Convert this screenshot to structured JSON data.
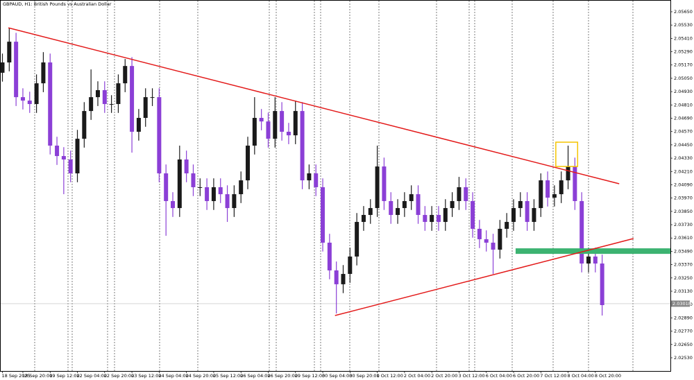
{
  "chart_data": {
    "type": "candlestick",
    "title": "GBPAUD, H1: British Pounds vs Australian Dollar",
    "categories": [
      "18 Sep 2025",
      null,
      null,
      "18 Sep 20:00",
      null,
      null,
      null,
      "19 Sep 12:00",
      null,
      null,
      null,
      "22 Sep 04:00",
      null,
      null,
      null,
      "22 Sep 20:00",
      null,
      null,
      null,
      "23 Sep 12:00",
      null,
      null,
      null,
      "24 Sep 04:00",
      null,
      null,
      null,
      "24 Sep 20:00",
      null,
      null,
      null,
      "25 Sep 12:00",
      null,
      null,
      null,
      "26 Sep 04:00",
      null,
      null,
      null,
      "26 Sep 20:00",
      null,
      null,
      null,
      "29 Sep 12:00",
      null,
      null,
      null,
      "30 Sep 04:00",
      null,
      null,
      null,
      "30 Sep 20:00",
      null,
      null,
      null,
      "1 Oct 12:00",
      null,
      null,
      null,
      "2 Oct 04:00",
      null,
      null,
      null,
      "2 Oct 20:00",
      null,
      null,
      null,
      "3 Oct 12:00",
      null,
      null,
      null,
      "6 Oct 04:00",
      null,
      null,
      null,
      "6 Oct 20:00",
      null,
      null,
      null,
      "7 Oct 12:00",
      null,
      null,
      null,
      "8 Oct 04:00",
      null,
      null,
      null,
      "8 Oct 20:00",
      null
    ],
    "open": [
      2.051,
      2.05193,
      2.0538,
      2.0488,
      2.04849,
      2.04818,
      2.05005,
      2.05193,
      2.04443,
      2.04349,
      2.04318,
      2.04193,
      2.04505,
      2.04755,
      2.0488,
      2.04943,
      2.04818,
      2.04818,
      2.05005,
      2.05161,
      2.04568,
      2.04693,
      2.0488,
      2.0488,
      2.04193,
      2.03943,
      2.0388,
      2.04318,
      2.04193,
      2.04068,
      2.04068,
      2.03943,
      2.04068,
      2.04005,
      2.0388,
      2.04005,
      2.0413,
      2.04443,
      2.04693,
      2.04661,
      2.04505,
      2.04755,
      2.04568,
      2.04536,
      2.04755,
      2.0413,
      2.04193,
      2.04068,
      2.03568,
      2.03318,
      2.03193,
      2.03286,
      2.03443,
      2.03755,
      2.03818,
      2.0388,
      2.04255,
      2.03943,
      2.03818,
      2.0388,
      2.03943,
      2.04005,
      2.03818,
      2.03755,
      2.03818,
      2.03755,
      2.0388,
      2.03943,
      2.04068,
      2.03943,
      2.03693,
      2.03599,
      2.03568,
      2.03505,
      2.03693,
      2.03755,
      2.0388,
      2.03943,
      2.03755,
      2.0388,
      2.0413,
      2.03974,
      2.04005,
      2.0413,
      2.04255,
      2.03943,
      2.0338,
      2.03443,
      2.0338
    ],
    "high": [
      2.05273,
      2.05505,
      2.0546,
      2.0496,
      2.04929,
      2.05085,
      2.05286,
      2.05273,
      2.04523,
      2.04429,
      2.04398,
      2.04585,
      2.04835,
      2.0513,
      2.05023,
      2.05023,
      2.04898,
      2.05085,
      2.05224,
      2.05241,
      2.04773,
      2.0496,
      2.0496,
      2.0496,
      2.04273,
      2.04023,
      2.04443,
      2.04398,
      2.04273,
      2.04148,
      2.04148,
      2.04148,
      2.04148,
      2.04085,
      2.04085,
      2.0421,
      2.04523,
      2.0488,
      2.04773,
      2.04741,
      2.0488,
      2.04835,
      2.04648,
      2.04849,
      2.04835,
      2.04273,
      2.04273,
      2.04148,
      2.03648,
      2.03398,
      2.03366,
      2.03523,
      2.03835,
      2.03898,
      2.0396,
      2.04443,
      2.04335,
      2.04023,
      2.0396,
      2.04023,
      2.04085,
      2.04085,
      2.03898,
      2.03898,
      2.03898,
      2.0396,
      2.04023,
      2.04161,
      2.04148,
      2.04023,
      2.03773,
      2.03679,
      2.03648,
      2.03773,
      2.03835,
      2.0396,
      2.04023,
      2.04023,
      2.0396,
      2.04193,
      2.0421,
      2.04085,
      2.0421,
      2.04443,
      2.04335,
      2.04023,
      2.03523,
      2.03523,
      2.0346
    ],
    "low": [
      2.0502,
      2.05113,
      2.048,
      2.04769,
      2.04738,
      2.04738,
      2.04925,
      2.04363,
      2.04269,
      2.04005,
      2.04113,
      2.04113,
      2.04425,
      2.04675,
      2.048,
      2.04738,
      2.04738,
      2.04738,
      2.04925,
      2.0438,
      2.04488,
      2.04613,
      2.048,
      2.04113,
      2.0363,
      2.038,
      2.038,
      2.04113,
      2.03988,
      2.03988,
      2.03863,
      2.03863,
      2.03925,
      2.03755,
      2.038,
      2.03925,
      2.0405,
      2.04363,
      2.04581,
      2.04425,
      2.04425,
      2.04488,
      2.04456,
      2.04456,
      2.0405,
      2.0405,
      2.03988,
      2.03488,
      2.03238,
      2.0293,
      2.03113,
      2.03206,
      2.03363,
      2.03675,
      2.03738,
      2.038,
      2.03863,
      2.03738,
      2.03738,
      2.038,
      2.03863,
      2.03738,
      2.03675,
      2.03675,
      2.03675,
      2.03675,
      2.038,
      2.03863,
      2.03863,
      2.03613,
      2.03519,
      2.03488,
      2.03286,
      2.03425,
      2.03613,
      2.03675,
      2.038,
      2.03675,
      2.03675,
      2.038,
      2.03894,
      2.03894,
      2.03925,
      2.0405,
      2.03863,
      2.033,
      2.033,
      2.033,
      2.02911
    ],
    "close": [
      2.05193,
      2.0538,
      2.0488,
      2.04849,
      2.04818,
      2.05005,
      2.05193,
      2.04443,
      2.04349,
      2.04318,
      2.04193,
      2.04505,
      2.04755,
      2.0488,
      2.04943,
      2.04818,
      2.04818,
      2.05005,
      2.05161,
      2.04568,
      2.04693,
      2.0488,
      2.0488,
      2.04193,
      2.03943,
      2.0388,
      2.04318,
      2.04193,
      2.04068,
      2.04068,
      2.03943,
      2.04068,
      2.04005,
      2.0388,
      2.04005,
      2.0413,
      2.04443,
      2.04693,
      2.04661,
      2.04505,
      2.04755,
      2.04568,
      2.04536,
      2.04755,
      2.0413,
      2.04193,
      2.04068,
      2.03568,
      2.03318,
      2.03193,
      2.03286,
      2.03443,
      2.03755,
      2.03818,
      2.0388,
      2.04255,
      2.03943,
      2.03818,
      2.0388,
      2.03943,
      2.04005,
      2.03818,
      2.03755,
      2.03818,
      2.03755,
      2.0388,
      2.03943,
      2.04068,
      2.03943,
      2.03693,
      2.03599,
      2.03568,
      2.03505,
      2.03693,
      2.03755,
      2.0388,
      2.03943,
      2.03755,
      2.0388,
      2.0413,
      2.03974,
      2.04005,
      2.0413,
      2.04255,
      2.03943,
      2.0338,
      2.03443,
      2.0338,
      2.03005
    ],
    "up_color": "#1a1a1a",
    "down_color": "#8b3fd6",
    "ylim": [
      2.02411,
      2.05756
    ],
    "yticks": [
      {
        "value": 2.0253,
        "label": "2.02530"
      },
      {
        "value": 2.0265,
        "label": "2.02650"
      },
      {
        "value": 2.0277,
        "label": "2.02770"
      },
      {
        "value": 2.0289,
        "label": "2.02890"
      },
      {
        "value": 2.0301,
        "label": "2.03010"
      },
      {
        "value": 2.0313,
        "label": "2.03130"
      },
      {
        "value": 2.0325,
        "label": "2.03250"
      },
      {
        "value": 2.0337,
        "label": "2.03370"
      },
      {
        "value": 2.0349,
        "label": "2.03490"
      },
      {
        "value": 2.0361,
        "label": "2.03610"
      },
      {
        "value": 2.0373,
        "label": "2.03730"
      },
      {
        "value": 2.0385,
        "label": "2.03850"
      },
      {
        "value": 2.0397,
        "label": "2.03970"
      },
      {
        "value": 2.0409,
        "label": "2.04090"
      },
      {
        "value": 2.0421,
        "label": "2.04210"
      },
      {
        "value": 2.0433,
        "label": "2.04330"
      },
      {
        "value": 2.0445,
        "label": "2.04450"
      },
      {
        "value": 2.0457,
        "label": "2.04570"
      },
      {
        "value": 2.0469,
        "label": "2.04690"
      },
      {
        "value": 2.0481,
        "label": "2.04810"
      },
      {
        "value": 2.0493,
        "label": "2.04930"
      },
      {
        "value": 2.0505,
        "label": "2.05050"
      },
      {
        "value": 2.0517,
        "label": "2.05170"
      },
      {
        "value": 2.0529,
        "label": "2.05290"
      },
      {
        "value": 2.0541,
        "label": "2.05410"
      },
      {
        "value": 2.0553,
        "label": "2.05530"
      },
      {
        "value": 2.0565,
        "label": "2.05650"
      }
    ],
    "current_price": 2.03018,
    "trendlines": [
      {
        "color": "#e31a1a",
        "x": [
          0.87,
          90.5
        ],
        "y": [
          2.05505,
          2.04099
        ]
      },
      {
        "color": "#e31a1a",
        "x": [
          48.8,
          92.6
        ],
        "y": [
          2.02911,
          2.03605
        ]
      }
    ],
    "zones": [
      {
        "color": "#3cb371",
        "fill": true,
        "x": [
          75.3,
          98.3
        ],
        "y": [
          2.03517,
          2.03467
        ]
      },
      {
        "color": "#f5c400",
        "fill": false,
        "x": [
          81.2,
          84.4
        ],
        "y": [
          2.04474,
          2.04255
        ]
      }
    ]
  }
}
